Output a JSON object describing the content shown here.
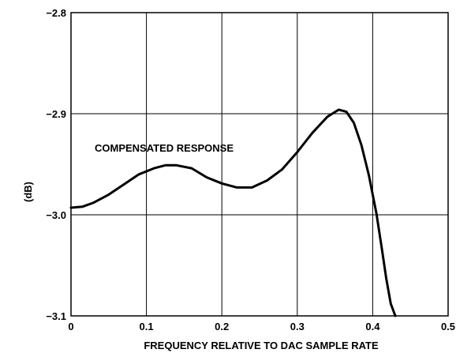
{
  "chart_data": {
    "type": "line",
    "title": "",
    "xlabel": "FREQUENCY RELATIVE TO DAC SAMPLE RATE",
    "ylabel": "(dB)",
    "xlim": [
      0,
      0.5
    ],
    "ylim": [
      -3.1,
      -2.8
    ],
    "xticks": [
      "0",
      "0.1",
      "0.2",
      "0.3",
      "0.4",
      "0.5"
    ],
    "yticks": [
      "−2.8",
      "−2.9",
      "−3.0",
      "−3.1"
    ],
    "grid": true,
    "annotation": "COMPENSATED RESPONSE",
    "series": [
      {
        "x": [
          0,
          0.015,
          0.03,
          0.05,
          0.07,
          0.09,
          0.11,
          0.125,
          0.14,
          0.16,
          0.18,
          0.2,
          0.22,
          0.24,
          0.26,
          0.28,
          0.3,
          0.32,
          0.34,
          0.355,
          0.365,
          0.375,
          0.385,
          0.395,
          0.405,
          0.412,
          0.418,
          0.424,
          0.43
        ],
        "y": [
          -2.993,
          -2.992,
          -2.988,
          -2.98,
          -2.97,
          -2.96,
          -2.954,
          -2.951,
          -2.951,
          -2.954,
          -2.963,
          -2.969,
          -2.973,
          -2.973,
          -2.966,
          -2.955,
          -2.938,
          -2.919,
          -2.903,
          -2.896,
          -2.898,
          -2.909,
          -2.931,
          -2.961,
          -2.999,
          -3.033,
          -3.063,
          -3.088,
          -3.1
        ]
      }
    ]
  }
}
